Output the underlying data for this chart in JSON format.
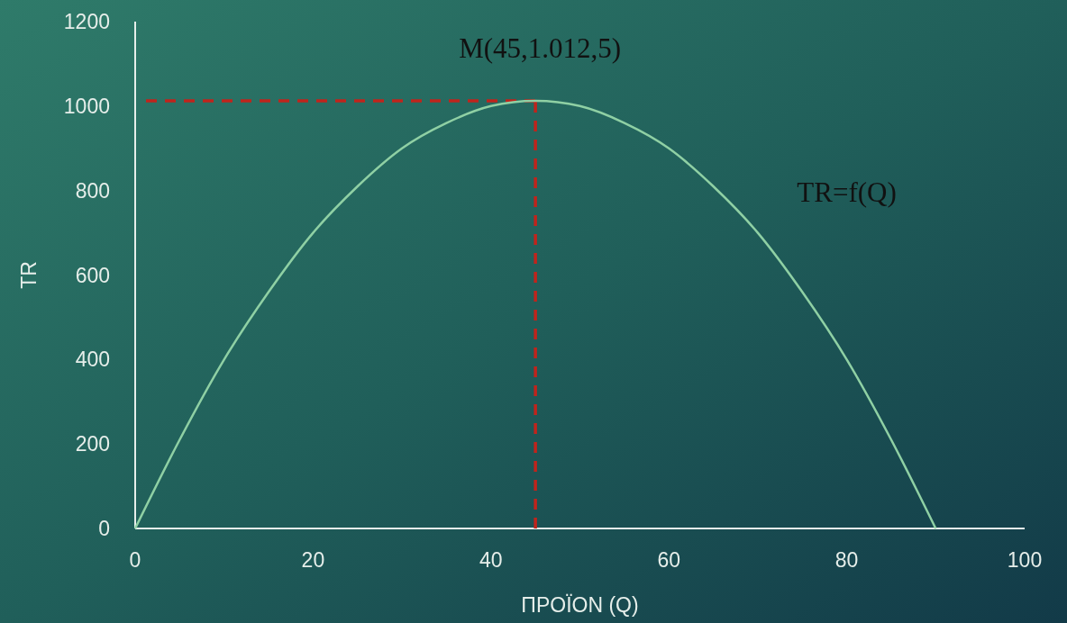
{
  "chart_data": {
    "type": "line",
    "xlabel": "ΠΡΟΪΟΝ (Q)",
    "ylabel": "TR",
    "x": [
      0,
      5,
      10,
      15,
      20,
      25,
      30,
      35,
      40,
      45,
      50,
      55,
      60,
      65,
      70,
      75,
      80,
      85,
      90
    ],
    "series": [
      {
        "color": "#8fd0a4",
        "values": [
          0,
          210,
          400,
          560,
          700,
          810,
          900,
          960,
          1000,
          1012.5,
          1000,
          960,
          900,
          810,
          700,
          560,
          400,
          210,
          0
        ]
      }
    ],
    "xlim": [
      0,
      100
    ],
    "xticks": [
      0,
      20,
      40,
      60,
      80,
      100
    ],
    "ylim": [
      0,
      1200
    ],
    "yticks": [
      0,
      200,
      400,
      600,
      800,
      1000,
      1200
    ],
    "grid": false,
    "marker": "none",
    "line_style": "solid",
    "ref_lines": [
      {
        "axis": "y",
        "value": 1012.5,
        "color": "#c0241c",
        "line_style": "dashed"
      },
      {
        "axis": "x",
        "value": 45,
        "color": "#c0241c",
        "line_style": "dashed"
      }
    ],
    "annotations": [
      {
        "text": "M(45,1.012,5)",
        "x": 45,
        "y": 1012.5
      },
      "TR=f(Q)"
    ]
  }
}
